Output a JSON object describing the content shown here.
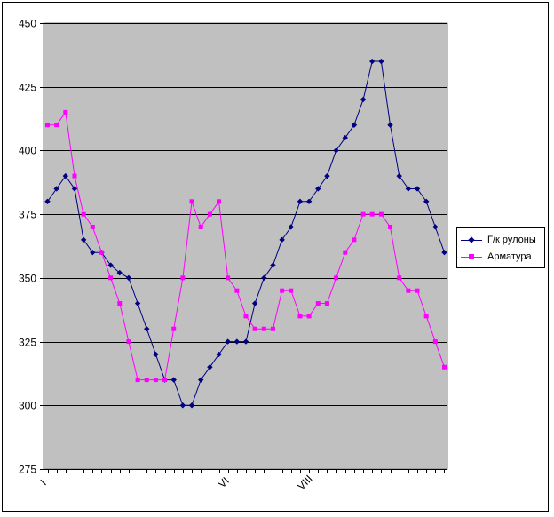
{
  "chart_data": {
    "type": "line",
    "title": "",
    "xlabel": "",
    "ylabel": "",
    "ylim": [
      275,
      450
    ],
    "yticks": [
      275,
      300,
      325,
      350,
      375,
      400,
      425,
      450
    ],
    "grid": true,
    "legend_position": "right",
    "background": "#c0c0c0",
    "x_tick_labels": [
      {
        "index": 0,
        "label": "I"
      },
      {
        "index": 20,
        "label": "VI"
      },
      {
        "index": 29,
        "label": "VIII"
      }
    ],
    "point_count": 45,
    "series": [
      {
        "name": "Г/к рулоны",
        "color": "#000080",
        "marker": "diamond",
        "values": [
          380,
          385,
          390,
          385,
          365,
          360,
          360,
          355,
          352,
          350,
          340,
          330,
          320,
          310,
          310,
          300,
          300,
          310,
          315,
          320,
          325,
          325,
          325,
          340,
          350,
          355,
          365,
          370,
          380,
          380,
          385,
          390,
          400,
          405,
          410,
          420,
          435,
          435,
          410,
          390,
          385,
          385,
          380,
          370,
          360
        ]
      },
      {
        "name": "Арматура",
        "color": "#ff00ff",
        "marker": "square",
        "values": [
          410,
          410,
          415,
          390,
          375,
          370,
          360,
          350,
          340,
          325,
          310,
          310,
          310,
          310,
          330,
          350,
          380,
          370,
          375,
          380,
          350,
          345,
          335,
          330,
          330,
          330,
          345,
          345,
          335,
          335,
          340,
          340,
          350,
          360,
          365,
          375,
          375,
          375,
          370,
          350,
          345,
          345,
          335,
          325,
          315
        ]
      }
    ]
  }
}
